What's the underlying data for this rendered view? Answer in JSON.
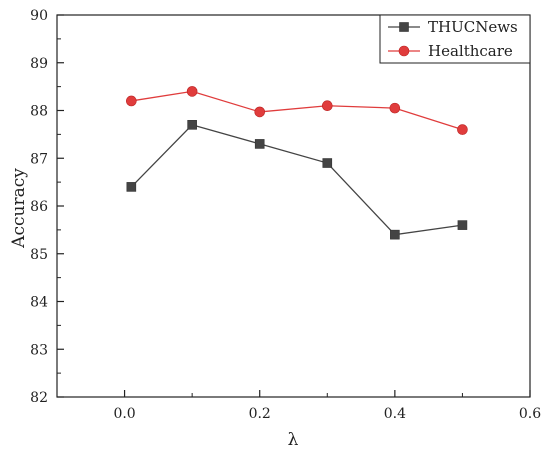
{
  "chart_data": {
    "type": "line",
    "title": "",
    "xlabel": "λ",
    "ylabel": "Accuracy",
    "xlim": [
      -0.1,
      0.6
    ],
    "ylim": [
      82,
      90
    ],
    "xticks": [
      0.0,
      0.2,
      0.4,
      0.6
    ],
    "xtick_labels": [
      "0.0",
      "0.2",
      "0.4",
      "0.6"
    ],
    "yticks": [
      82,
      83,
      84,
      85,
      86,
      87,
      88,
      89,
      90
    ],
    "ytick_labels": [
      "82",
      "83",
      "84",
      "85",
      "86",
      "87",
      "88",
      "89",
      "90"
    ],
    "grid": false,
    "legend": "top-right",
    "series": [
      {
        "name": "THUCNews",
        "color": "#444444",
        "marker": "square",
        "x": [
          0.01,
          0.1,
          0.2,
          0.3,
          0.4,
          0.5
        ],
        "values": [
          86.4,
          87.7,
          87.3,
          86.9,
          85.4,
          85.6
        ]
      },
      {
        "name": "Healthcare",
        "color": "#e03c3c",
        "marker": "circle",
        "x": [
          0.01,
          0.1,
          0.2,
          0.3,
          0.4,
          0.5
        ],
        "values": [
          88.2,
          88.4,
          87.97,
          88.1,
          88.05,
          87.6
        ]
      }
    ]
  }
}
